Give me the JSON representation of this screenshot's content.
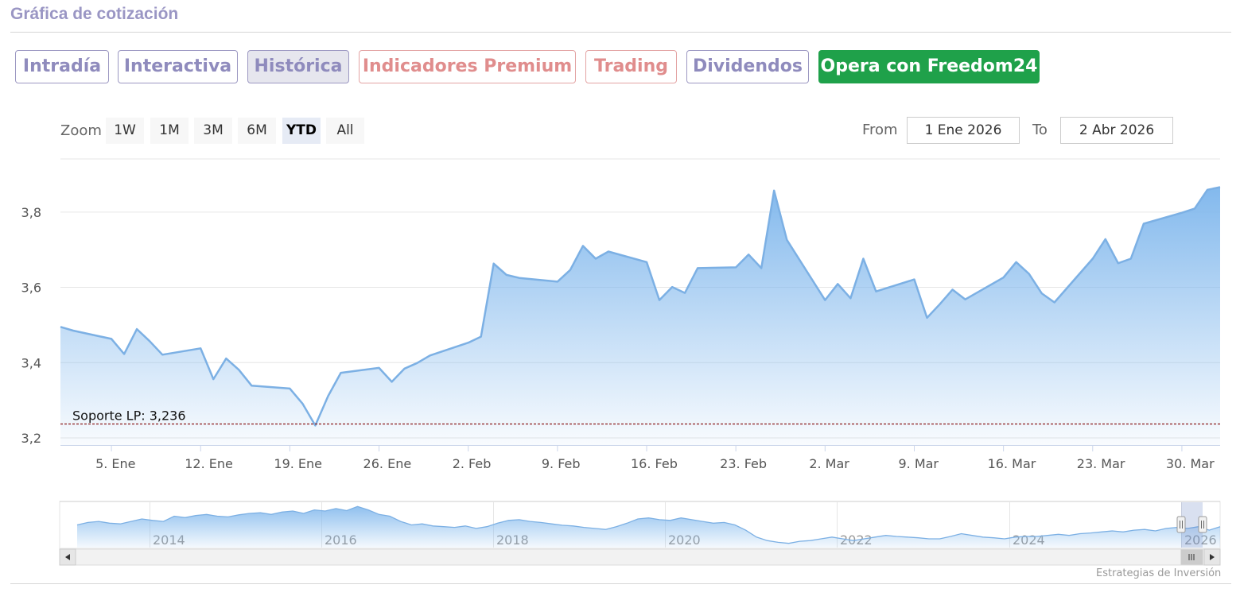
{
  "header": {
    "title": "Gráfica de cotización"
  },
  "tabs": [
    {
      "label": "Intradía",
      "style": "normal"
    },
    {
      "label": "Interactiva",
      "style": "normal"
    },
    {
      "label": "Histórica",
      "style": "active"
    },
    {
      "label": "Indicadores Premium",
      "style": "premium"
    },
    {
      "label": "Trading",
      "style": "premium"
    },
    {
      "label": "Dividendos",
      "style": "normal"
    },
    {
      "label": "Opera con Freedom24",
      "style": "cta"
    }
  ],
  "zoom": {
    "label": "Zoom",
    "buttons": [
      "1W",
      "1M",
      "3M",
      "6M",
      "YTD",
      "All"
    ],
    "selected": "YTD"
  },
  "range": {
    "from_label": "From",
    "from_value": "1 Ene 2026",
    "to_label": "To",
    "to_value": "2 Abr 2026"
  },
  "colors": {
    "line": "#7cb0e4",
    "fill_top": "#7cb5ec",
    "support": "#8b1a1a",
    "grid": "#e6e6e6"
  },
  "chart_data": {
    "type": "area",
    "x_ticks": [
      "5. Ene",
      "12. Ene",
      "19. Ene",
      "26. Ene",
      "2. Feb",
      "9. Feb",
      "16. Feb",
      "23. Feb",
      "2. Mar",
      "9. Mar",
      "16. Mar",
      "23. Mar",
      "30. Mar"
    ],
    "y_ticks": [
      "3,2",
      "3,4",
      "3,6",
      "3,8"
    ],
    "ylim": [
      3.18,
      3.94
    ],
    "x": [
      "2026-01-01",
      "2026-01-02",
      "2026-01-05",
      "2026-01-06",
      "2026-01-07",
      "2026-01-08",
      "2026-01-09",
      "2026-01-12",
      "2026-01-13",
      "2026-01-14",
      "2026-01-15",
      "2026-01-16",
      "2026-01-19",
      "2026-01-20",
      "2026-01-21",
      "2026-01-22",
      "2026-01-23",
      "2026-01-26",
      "2026-01-27",
      "2026-01-28",
      "2026-01-29",
      "2026-01-30",
      "2026-02-02",
      "2026-02-03",
      "2026-02-04",
      "2026-02-05",
      "2026-02-06",
      "2026-02-09",
      "2026-02-10",
      "2026-02-11",
      "2026-02-12",
      "2026-02-13",
      "2026-02-16",
      "2026-02-17",
      "2026-02-18",
      "2026-02-19",
      "2026-02-20",
      "2026-02-23",
      "2026-02-24",
      "2026-02-25",
      "2026-02-26",
      "2026-02-27",
      "2026-03-02",
      "2026-03-03",
      "2026-03-04",
      "2026-03-05",
      "2026-03-06",
      "2026-03-09",
      "2026-03-10",
      "2026-03-11",
      "2026-03-12",
      "2026-03-13",
      "2026-03-16",
      "2026-03-17",
      "2026-03-18",
      "2026-03-19",
      "2026-03-20",
      "2026-03-23",
      "2026-03-24",
      "2026-03-25",
      "2026-03-26",
      "2026-03-27",
      "2026-03-30",
      "2026-03-31",
      "2026-04-01",
      "2026-04-02"
    ],
    "series": [
      {
        "values": [
          3.494,
          3.484,
          3.462,
          3.422,
          3.488,
          3.456,
          3.42,
          3.437,
          3.355,
          3.41,
          3.38,
          3.338,
          3.33,
          3.29,
          3.232,
          3.31,
          3.372,
          3.385,
          3.348,
          3.383,
          3.398,
          3.418,
          3.452,
          3.468,
          3.662,
          3.632,
          3.624,
          3.614,
          3.645,
          3.709,
          3.675,
          3.694,
          3.666,
          3.565,
          3.6,
          3.584,
          3.65,
          3.652,
          3.686,
          3.65,
          3.856,
          3.725,
          3.565,
          3.608,
          3.57,
          3.675,
          3.588,
          3.62,
          3.518,
          3.554,
          3.593,
          3.567,
          3.625,
          3.666,
          3.635,
          3.583,
          3.559,
          3.675,
          3.727,
          3.663,
          3.675,
          3.768,
          3.797,
          3.808,
          3.858,
          3.865
        ]
      }
    ],
    "annotations": [
      {
        "label": "Soporte LP: 3,236",
        "value": 3.236
      }
    ],
    "navigator": {
      "x_ticks": [
        "2014",
        "2016",
        "2018",
        "2020",
        "2022",
        "2024",
        "2026"
      ],
      "values": [
        3.45,
        3.52,
        3.55,
        3.5,
        3.48,
        3.55,
        3.62,
        3.58,
        3.55,
        3.7,
        3.66,
        3.72,
        3.75,
        3.7,
        3.68,
        3.74,
        3.78,
        3.8,
        3.75,
        3.82,
        3.85,
        3.78,
        3.88,
        3.85,
        3.92,
        3.86,
        3.98,
        3.88,
        3.75,
        3.7,
        3.55,
        3.45,
        3.48,
        3.42,
        3.4,
        3.38,
        3.42,
        3.35,
        3.4,
        3.5,
        3.58,
        3.6,
        3.55,
        3.52,
        3.48,
        3.44,
        3.42,
        3.38,
        3.35,
        3.32,
        3.4,
        3.5,
        3.62,
        3.65,
        3.6,
        3.58,
        3.65,
        3.6,
        3.55,
        3.5,
        3.52,
        3.45,
        3.3,
        3.1,
        3.0,
        2.95,
        2.92,
        2.98,
        3.0,
        3.05,
        3.1,
        3.05,
        3.0,
        3.05,
        3.1,
        3.15,
        3.12,
        3.1,
        3.08,
        3.05,
        3.05,
        3.12,
        3.2,
        3.15,
        3.1,
        3.08,
        3.05,
        3.1,
        3.12,
        3.12,
        3.15,
        3.18,
        3.15,
        3.2,
        3.22,
        3.25,
        3.28,
        3.25,
        3.3,
        3.32,
        3.28,
        3.35,
        3.38,
        3.35,
        3.4,
        3.3,
        3.4
      ]
    },
    "credit": "Estrategias de Inversión"
  }
}
